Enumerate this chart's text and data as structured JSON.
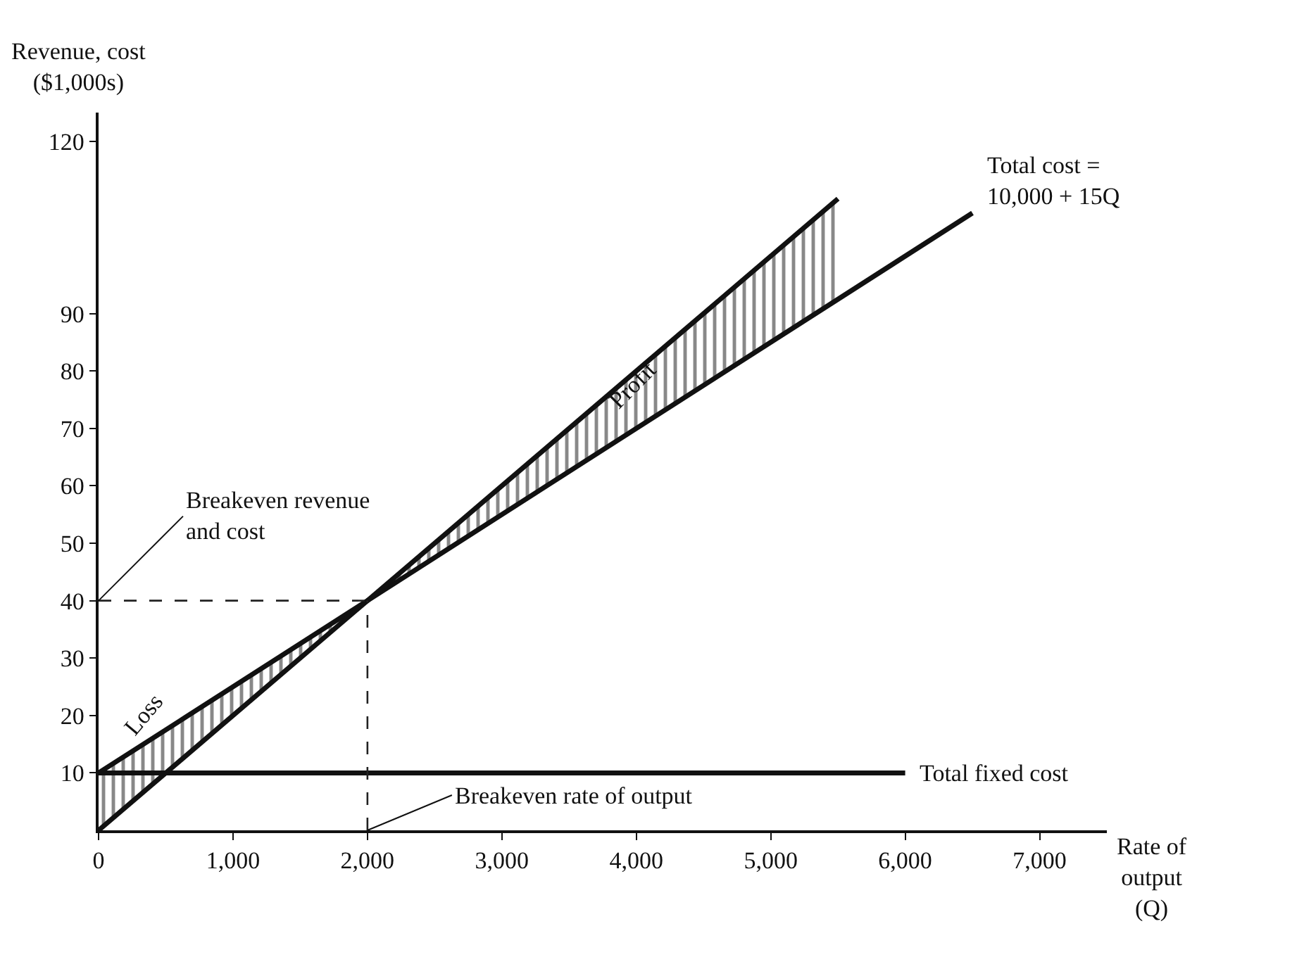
{
  "chart_data": {
    "type": "line",
    "xlabel": "Rate of\noutput\n(Q)",
    "ylabel": "Revenue, cost\n($1,000s)",
    "series": [
      {
        "name": "Total cost =\n10,000 + 15Q",
        "color": "#111111",
        "x": [
          0,
          2000,
          5500,
          6500
        ],
        "values": [
          10,
          40,
          92.5,
          107.5
        ]
      },
      {
        "color": "#111111",
        "x": [
          0,
          2000,
          5500
        ],
        "values": [
          0,
          40,
          110
        ],
        "lower": [
          10,
          40,
          92.5
        ],
        "upper": [
          0,
          40,
          110
        ]
      },
      {
        "name": "Total fixed cost",
        "color": "#111111",
        "x": [
          0,
          6000
        ],
        "values": [
          10,
          10
        ]
      }
    ],
    "xlim": [
      0,
      7500
    ],
    "ylim": [
      0,
      125
    ],
    "xticks": [
      {
        "value": 0,
        "label": "0"
      },
      {
        "value": 1000,
        "label": "1,000"
      },
      {
        "value": 2000,
        "label": "2,000"
      },
      {
        "value": 3000,
        "label": "3,000"
      },
      {
        "value": 4000,
        "label": "4,000"
      },
      {
        "value": 5000,
        "label": "5,000"
      },
      {
        "value": 6000,
        "label": "6,000"
      },
      {
        "value": 7000,
        "label": "7,000"
      }
    ],
    "yticks": [
      10,
      20,
      30,
      40,
      50,
      60,
      70,
      80,
      90,
      120
    ],
    "ref_lines": [
      {
        "axis": "y",
        "value": 40,
        "line_style": "dashed"
      },
      {
        "axis": "x",
        "value": 2000,
        "line_style": "dashed"
      }
    ],
    "annotations": [
      {
        "text": "Breakeven revenue\nand cost",
        "x": 0,
        "y": 40
      },
      {
        "text": "Breakeven rate of output",
        "x": 2000,
        "y": 0
      },
      "Loss",
      "Profit"
    ],
    "legend": false,
    "line_style": "solid",
    "marker": "none"
  }
}
